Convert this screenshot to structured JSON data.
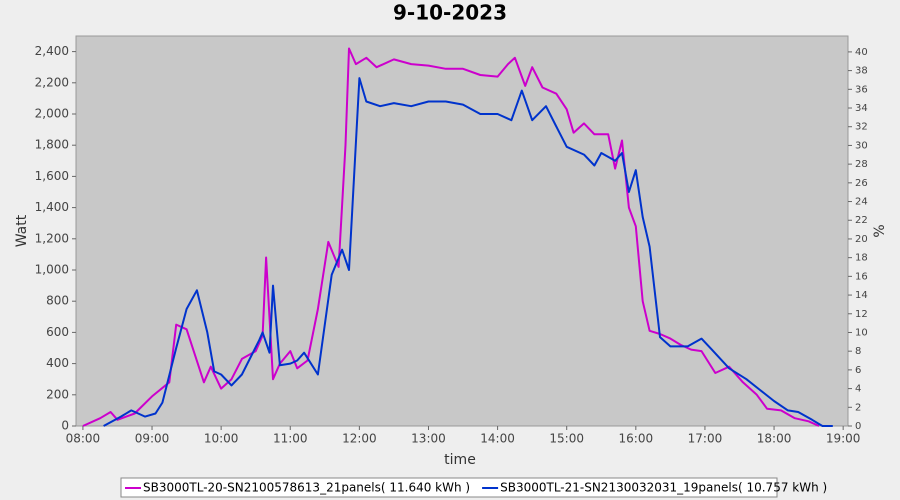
{
  "chart_data": {
    "type": "line",
    "title": "9-10-2023",
    "x_label": "time",
    "y_label": "Watt",
    "y2_label": "%",
    "xlim": [
      7.9,
      19.07
    ],
    "xticks": [
      {
        "value": 8,
        "label": "08:00"
      },
      {
        "value": 9,
        "label": "09:00"
      },
      {
        "value": 10,
        "label": "10:00"
      },
      {
        "value": 11,
        "label": "11:00"
      },
      {
        "value": 12,
        "label": "12:00"
      },
      {
        "value": 13,
        "label": "13:00"
      },
      {
        "value": 14,
        "label": "14:00"
      },
      {
        "value": 15,
        "label": "15:00"
      },
      {
        "value": 16,
        "label": "16:00"
      },
      {
        "value": 17,
        "label": "17:00"
      },
      {
        "value": 18,
        "label": "18:00"
      },
      {
        "value": 19,
        "label": "19:00"
      }
    ],
    "ylim": [
      0,
      2500
    ],
    "yticks": [
      0,
      200,
      400,
      600,
      800,
      {
        "value": 1000,
        "label": "1,000"
      },
      {
        "value": 1200,
        "label": "1,200"
      },
      {
        "value": 1400,
        "label": "1,400"
      },
      {
        "value": 1600,
        "label": "1,600"
      },
      {
        "value": 1800,
        "label": "1,800"
      },
      {
        "value": 2000,
        "label": "2,000"
      },
      {
        "value": 2200,
        "label": "2,200"
      },
      {
        "value": 2400,
        "label": "2,400"
      }
    ],
    "y2lim": [
      0,
      41.7
    ],
    "y2ticks": [
      0,
      2,
      4,
      6,
      8,
      10,
      12,
      14,
      16,
      18,
      20,
      22,
      24,
      26,
      28,
      30,
      32,
      34,
      36,
      38,
      40
    ],
    "grid": false,
    "series": [
      {
        "name": "SB3000TL-20-SN2100578613_21panels( 11.640 kWh )",
        "color": "#cc00cc",
        "x": [
          8.0,
          8.25,
          8.4,
          8.5,
          8.75,
          9.0,
          9.25,
          9.35,
          9.5,
          9.75,
          9.85,
          10.0,
          10.15,
          10.3,
          10.5,
          10.6,
          10.65,
          10.75,
          10.85,
          11.0,
          11.1,
          11.25,
          11.4,
          11.55,
          11.7,
          11.8,
          11.85,
          11.95,
          12.1,
          12.25,
          12.5,
          12.75,
          13.0,
          13.25,
          13.5,
          13.75,
          14.0,
          14.15,
          14.25,
          14.4,
          14.5,
          14.65,
          14.85,
          15.0,
          15.1,
          15.25,
          15.4,
          15.6,
          15.7,
          15.8,
          15.9,
          16.0,
          16.1,
          16.2,
          16.35,
          16.5,
          16.65,
          16.8,
          16.95,
          17.15,
          17.35,
          17.55,
          17.75,
          17.9,
          18.1,
          18.3,
          18.5,
          18.65
        ],
        "values": [
          0,
          50,
          90,
          40,
          80,
          190,
          280,
          650,
          620,
          280,
          380,
          240,
          300,
          430,
          480,
          580,
          1080,
          300,
          400,
          480,
          370,
          420,
          750,
          1180,
          1020,
          1800,
          2420,
          2320,
          2360,
          2300,
          2350,
          2320,
          2310,
          2290,
          2290,
          2250,
          2240,
          2320,
          2360,
          2180,
          2300,
          2170,
          2130,
          2030,
          1880,
          1940,
          1870,
          1870,
          1650,
          1830,
          1400,
          1280,
          800,
          610,
          590,
          560,
          520,
          490,
          480,
          340,
          380,
          280,
          200,
          110,
          100,
          50,
          30,
          0
        ]
      },
      {
        "name": "SB3000TL-21-SN2130032031_19panels( 10.757 kWh )",
        "color": "#0033cc",
        "x": [
          8.3,
          8.55,
          8.7,
          8.9,
          9.05,
          9.15,
          9.35,
          9.5,
          9.65,
          9.8,
          9.9,
          10.0,
          10.15,
          10.3,
          10.55,
          10.6,
          10.7,
          10.75,
          10.85,
          11.0,
          11.1,
          11.2,
          11.4,
          11.6,
          11.75,
          11.85,
          12.0,
          12.1,
          12.3,
          12.5,
          12.75,
          13.0,
          13.25,
          13.5,
          13.75,
          14.0,
          14.2,
          14.35,
          14.5,
          14.7,
          14.85,
          15.0,
          15.25,
          15.4,
          15.5,
          15.7,
          15.8,
          15.9,
          16.0,
          16.1,
          16.2,
          16.35,
          16.5,
          16.75,
          16.95,
          17.1,
          17.35,
          17.6,
          17.8,
          18.0,
          18.2,
          18.35,
          18.55,
          18.7,
          18.85
        ],
        "values": [
          0,
          60,
          100,
          60,
          80,
          150,
          500,
          750,
          870,
          600,
          350,
          330,
          260,
          330,
          550,
          600,
          470,
          900,
          390,
          400,
          420,
          470,
          330,
          970,
          1130,
          1000,
          2230,
          2080,
          2050,
          2070,
          2050,
          2080,
          2080,
          2060,
          2000,
          2000,
          1960,
          2150,
          1960,
          2050,
          1920,
          1790,
          1740,
          1670,
          1750,
          1700,
          1750,
          1500,
          1640,
          1340,
          1150,
          570,
          510,
          510,
          560,
          490,
          370,
          300,
          230,
          160,
          100,
          90,
          40,
          0,
          0
        ]
      }
    ]
  }
}
